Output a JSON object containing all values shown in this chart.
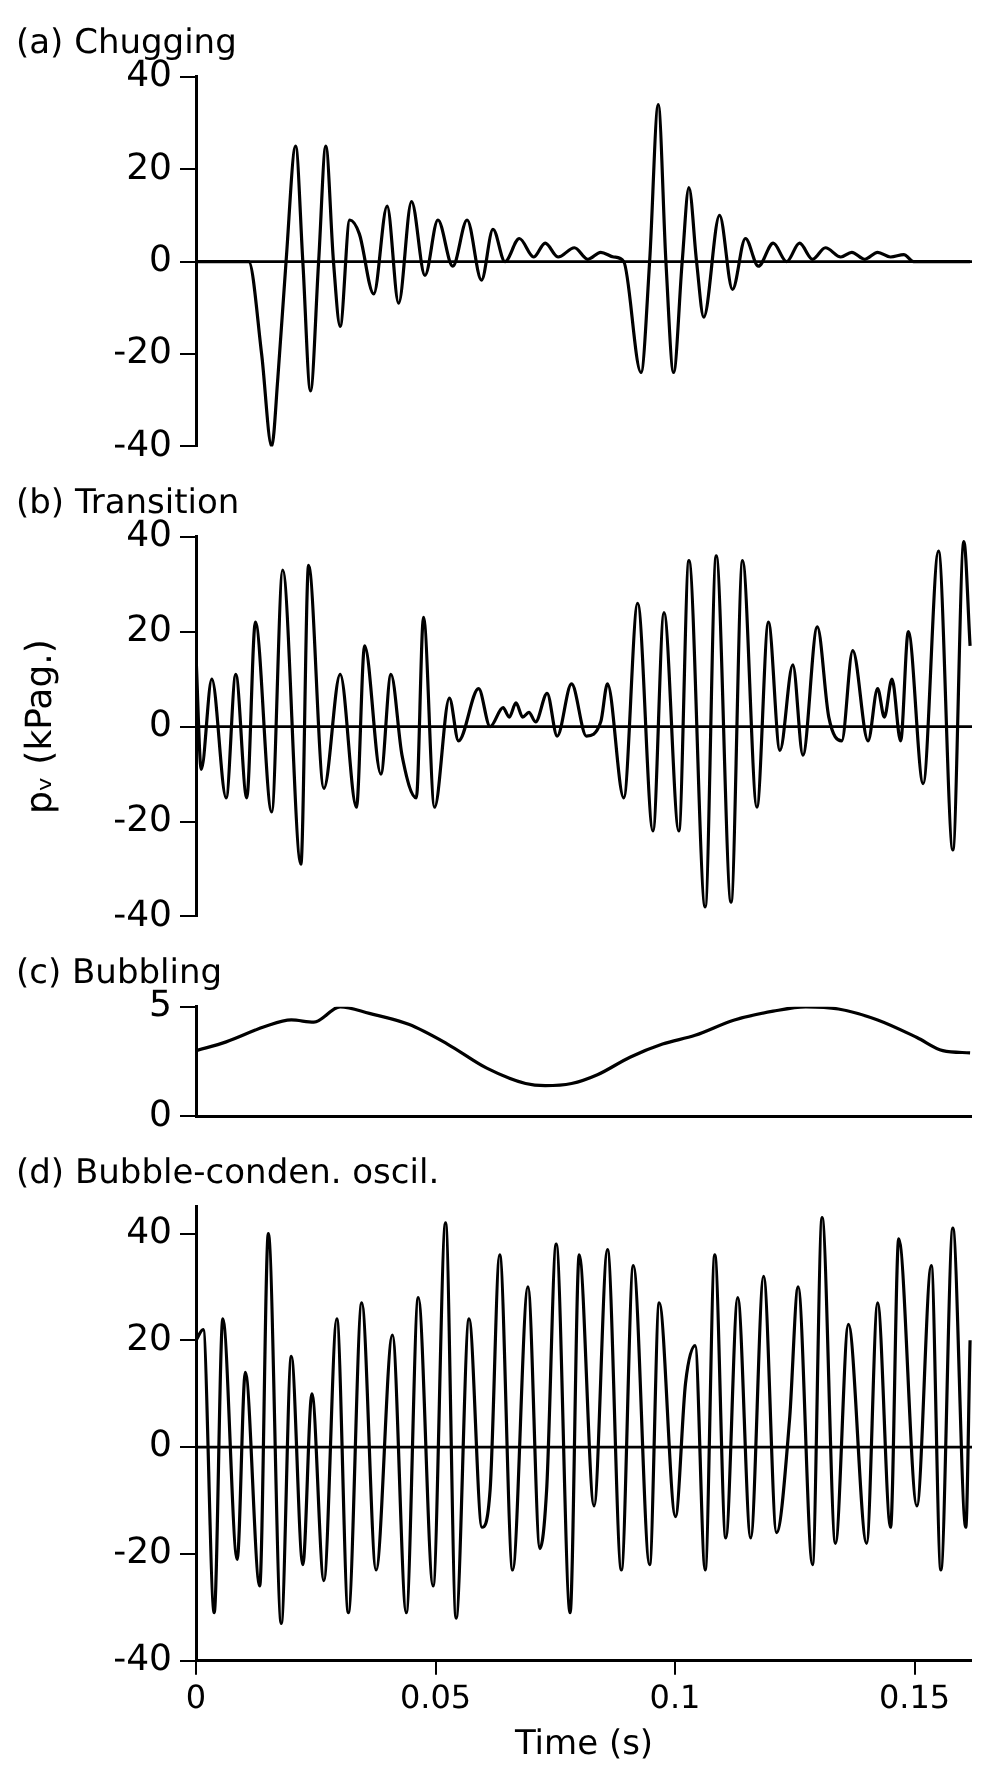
{
  "chart_data": [
    {
      "type": "line",
      "title": "(a) Chugging",
      "xlim": [
        0,
        0.162
      ],
      "xticks": [
        0,
        0.05,
        0.1,
        0.15
      ],
      "ylim": [
        -40,
        40
      ],
      "yticks": [
        -40,
        -20,
        0,
        20,
        40
      ],
      "tick_labels": "y",
      "ref_lines": [
        {
          "axis": "y",
          "value": 0
        }
      ],
      "series": [
        {
          "color": "#000000",
          "x": [
            0,
            0.011,
            0.0137,
            0.0158,
            0.0171,
            0.0188,
            0.0208,
            0.0223,
            0.0239,
            0.0256,
            0.0271,
            0.0287,
            0.0301,
            0.0321,
            0.0341,
            0.0371,
            0.0399,
            0.0423,
            0.045,
            0.0478,
            0.0505,
            0.0536,
            0.0566,
            0.0596,
            0.062,
            0.0645,
            0.0675,
            0.0705,
            0.0729,
            0.0756,
            0.079,
            0.0818,
            0.0845,
            0.0872,
            0.0893,
            0.0929,
            0.0947,
            0.0965,
            0.0981,
            0.0997,
            0.1015,
            0.1029,
            0.1045,
            0.106,
            0.1093,
            0.112,
            0.1147,
            0.1174,
            0.1205,
            0.1233,
            0.126,
            0.1287,
            0.1314,
            0.1346,
            0.1369,
            0.1396,
            0.1423,
            0.145,
            0.1478,
            0.1498,
            0.1616
          ],
          "values": [
            0,
            0,
            -20,
            -40,
            -25,
            0,
            25,
            0,
            -28,
            0,
            25,
            0,
            -14,
            9,
            6,
            -7,
            12,
            -9,
            13,
            -3,
            9,
            -1,
            9,
            -4,
            7,
            0,
            5,
            1,
            4,
            1,
            3,
            0.5,
            2,
            1,
            0,
            -24,
            0,
            34,
            0,
            -24,
            0,
            16,
            0,
            -12,
            10,
            -6,
            5,
            -1,
            4,
            0,
            4,
            0.5,
            3,
            1,
            2,
            0.5,
            2,
            1,
            1.5,
            0,
            0
          ]
        }
      ]
    },
    {
      "type": "line",
      "title": "(b) Transition",
      "ylabel": "pᵥ (kPag.)",
      "xlim": [
        0,
        0.162
      ],
      "xticks": [
        0,
        0.05,
        0.1,
        0.15
      ],
      "ylim": [
        -40,
        40
      ],
      "yticks": [
        -40,
        -20,
        0,
        20,
        40
      ],
      "tick_labels": "y",
      "ref_lines": [
        {
          "axis": "y",
          "value": 0
        }
      ],
      "series": [
        {
          "color": "#000000",
          "x": [
            0,
            0.0011,
            0.0033,
            0.0063,
            0.0083,
            0.0106,
            0.0124,
            0.0158,
            0.0181,
            0.0219,
            0.0235,
            0.0267,
            0.0301,
            0.0335,
            0.0352,
            0.0386,
            0.0407,
            0.043,
            0.046,
            0.0475,
            0.0498,
            0.0529,
            0.0548,
            0.059,
            0.0614,
            0.0641,
            0.0654,
            0.0668,
            0.0682,
            0.0695,
            0.0709,
            0.0733,
            0.0754,
            0.0784,
            0.0815,
            0.0845,
            0.0859,
            0.0893,
            0.0922,
            0.0954,
            0.0977,
            0.1008,
            0.1029,
            0.1063,
            0.1086,
            0.1117,
            0.1141,
            0.1171,
            0.1195,
            0.1219,
            0.1246,
            0.1267,
            0.1297,
            0.1321,
            0.1348,
            0.1371,
            0.1403,
            0.1423,
            0.1437,
            0.1453,
            0.1471,
            0.1487,
            0.1518,
            0.155,
            0.158,
            0.1603,
            0.1616
          ],
          "values": [
            15,
            -9,
            10,
            -15,
            11,
            -15,
            22,
            -18,
            33,
            -29,
            34,
            -13,
            11,
            -17,
            17,
            -10,
            11,
            -6,
            -15,
            23,
            -17,
            6,
            -3,
            8,
            0,
            4,
            2,
            5,
            2,
            3,
            1,
            7,
            -2,
            9,
            -2,
            1,
            9,
            -15,
            26,
            -22,
            24,
            -22,
            35,
            -38,
            36,
            -37,
            35,
            -17,
            22,
            -5,
            13,
            -6,
            21,
            2,
            -3,
            16,
            -3,
            8,
            2,
            10,
            -3,
            20,
            -12,
            37,
            -26,
            39,
            17
          ]
        }
      ]
    },
    {
      "type": "line",
      "title": "(c) Bubbling",
      "xlim": [
        0,
        0.162
      ],
      "xticks": [
        0,
        0.05,
        0.1,
        0.15
      ],
      "ylim": [
        0,
        5
      ],
      "yticks": [
        0,
        5
      ],
      "tick_labels": "y",
      "series": [
        {
          "color": "#000000",
          "x": [
            0,
            0.0063,
            0.0144,
            0.0199,
            0.0246,
            0.0301,
            0.0362,
            0.0444,
            0.0525,
            0.0607,
            0.0688,
            0.0729,
            0.0784,
            0.0838,
            0.0906,
            0.0974,
            0.1042,
            0.1124,
            0.1205,
            0.1273,
            0.1341,
            0.1423,
            0.1505,
            0.1559,
            0.1616
          ],
          "values": [
            3.0,
            3.4,
            4.1,
            4.4,
            4.3,
            5.0,
            4.7,
            4.2,
            3.3,
            2.2,
            1.5,
            1.4,
            1.5,
            1.9,
            2.7,
            3.3,
            3.7,
            4.4,
            4.8,
            5.0,
            4.9,
            4.4,
            3.6,
            3.0,
            2.9
          ]
        }
      ]
    },
    {
      "type": "line",
      "title": "(d) Bubble-conden. oscil.",
      "xlabel": "Time (s)",
      "xlim": [
        0,
        0.162
      ],
      "xticks": [
        0,
        0.05,
        0.1,
        0.15
      ],
      "ylim": [
        -40,
        45
      ],
      "yticks": [
        -40,
        -20,
        0,
        20,
        40
      ],
      "ref_lines": [
        {
          "axis": "y",
          "value": 0
        }
      ],
      "series": [
        {
          "color": "#000000",
          "x": [
            0,
            0.0015,
            0.0038,
            0.0056,
            0.0086,
            0.0103,
            0.0133,
            0.0151,
            0.0178,
            0.0199,
            0.0223,
            0.0242,
            0.0267,
            0.0294,
            0.0318,
            0.0346,
            0.0376,
            0.041,
            0.0439,
            0.0464,
            0.0495,
            0.0521,
            0.0543,
            0.057,
            0.0597,
            0.0614,
            0.0634,
            0.0661,
            0.0693,
            0.0718,
            0.0732,
            0.0752,
            0.0781,
            0.08,
            0.0831,
            0.0859,
            0.0888,
            0.0913,
            0.0947,
            0.0967,
            0.1001,
            0.1022,
            0.1042,
            0.1063,
            0.1083,
            0.1106,
            0.1131,
            0.1158,
            0.1185,
            0.1212,
            0.1239,
            0.1257,
            0.1287,
            0.1307,
            0.1335,
            0.1362,
            0.14,
            0.1423,
            0.145,
            0.1467,
            0.1505,
            0.1535,
            0.1555,
            0.158,
            0.1607,
            0.1616
          ],
          "values": [
            20,
            22,
            -31,
            24,
            -21,
            14,
            -26,
            40,
            -33,
            17,
            -22,
            10,
            -25,
            24,
            -31,
            27,
            -23,
            21,
            -31,
            28,
            -26,
            42,
            -32,
            24,
            -15,
            -8,
            36,
            -23,
            30,
            -19,
            -8,
            38,
            -31,
            36,
            -11,
            37,
            -23,
            34,
            -22,
            27,
            -13,
            12,
            19,
            -23,
            36,
            -17,
            28,
            -17,
            32,
            -16,
            5,
            30,
            -22,
            43,
            -18,
            23,
            -18,
            27,
            -15,
            39,
            -11,
            34,
            -23,
            41,
            -15,
            20
          ]
        }
      ]
    }
  ]
}
